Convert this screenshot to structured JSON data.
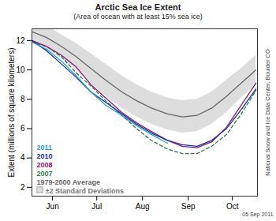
{
  "chart_data": {
    "type": "line",
    "title": "Arctic Sea Ice Extent",
    "subtitle": "(Area of ocean with at least 15% sea ice)",
    "y_label": "Extent (millions of square kilometers)",
    "annotations": [
      "National Snow and Ice Data Center, Boulder CO",
      "05 Sep 2011"
    ],
    "x": [
      152,
      162,
      172,
      182,
      192,
      202,
      213,
      223,
      233,
      244,
      254,
      264,
      274,
      284,
      294,
      304
    ],
    "xlim": [
      152,
      305
    ],
    "xticks": [
      {
        "value": 166,
        "label": "Jun"
      },
      {
        "value": 196,
        "label": "Jul"
      },
      {
        "value": 227,
        "label": "Aug"
      },
      {
        "value": 258,
        "label": "Sep"
      },
      {
        "value": 288,
        "label": "Oct"
      }
    ],
    "ylim": [
      1.4,
      12.8
    ],
    "yticks": [
      2,
      4,
      6,
      8,
      10,
      12
    ],
    "grid": false,
    "legend": "bottom-left",
    "series": [
      {
        "name": "2011",
        "color": "#1fa3d8",
        "line_style": "solid",
        "values": [
          11.9,
          11.4,
          10.6,
          9.6,
          8.5,
          7.6,
          6.9,
          6.2,
          5.6,
          5.0,
          null,
          null,
          null,
          null,
          null,
          null
        ]
      },
      {
        "name": "2010",
        "color": "#1c2fa0",
        "line_style": "solid",
        "values": [
          12.0,
          11.3,
          10.4,
          9.5,
          8.5,
          7.8,
          7.0,
          6.3,
          5.7,
          5.2,
          4.9,
          4.8,
          5.2,
          6.0,
          7.3,
          8.7
        ]
      },
      {
        "name": "2008",
        "color": "#8b1a6b",
        "line_style": "solid",
        "values": [
          12.0,
          11.6,
          11.0,
          10.2,
          9.0,
          8.1,
          7.1,
          6.4,
          5.8,
          5.2,
          4.8,
          4.7,
          5.1,
          6.1,
          7.6,
          9.1
        ]
      },
      {
        "name": "2007",
        "color": "#2e7d4f",
        "line_style": "dashed",
        "values": [
          11.9,
          11.6,
          10.9,
          9.8,
          8.9,
          7.9,
          6.9,
          6.0,
          5.2,
          4.6,
          4.3,
          4.3,
          4.8,
          5.6,
          7.0,
          8.6
        ]
      },
      {
        "name": "1979-2000 Average",
        "color": "#666666",
        "line_style": "solid",
        "values": [
          12.6,
          12.2,
          11.6,
          10.9,
          10.1,
          9.3,
          8.5,
          7.9,
          7.4,
          7.0,
          6.8,
          6.9,
          7.4,
          8.2,
          9.1,
          10.0
        ]
      }
    ],
    "band": {
      "name": "±2 Standard Deviations",
      "color": "#dddddd",
      "lower": [
        11.8,
        11.4,
        10.8,
        10.0,
        9.1,
        8.2,
        7.4,
        6.8,
        6.3,
        5.9,
        5.7,
        5.8,
        6.3,
        7.1,
        8.1,
        9.0
      ],
      "upper": [
        13.4,
        13.0,
        12.4,
        11.8,
        11.1,
        10.4,
        9.6,
        9.0,
        8.5,
        8.1,
        7.9,
        8.0,
        8.5,
        9.3,
        10.1,
        11.0
      ]
    }
  }
}
